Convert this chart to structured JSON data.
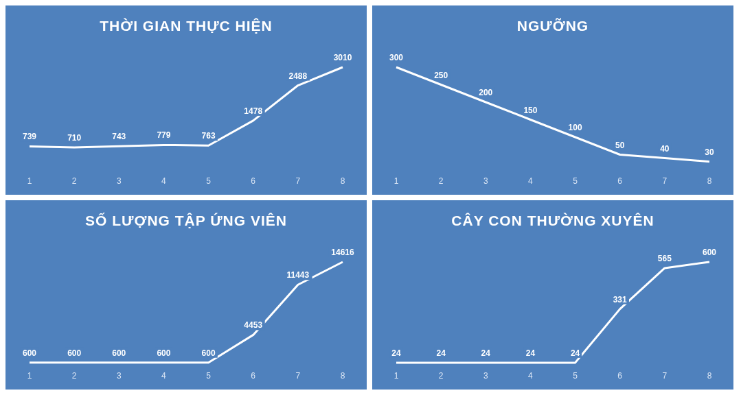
{
  "chart_data": [
    {
      "type": "line",
      "title": "THỜI GIAN THỰC HIỆN",
      "categories": [
        "1",
        "2",
        "3",
        "4",
        "5",
        "6",
        "7",
        "8"
      ],
      "values": [
        739,
        710,
        743,
        779,
        763,
        1478,
        2488,
        3010
      ],
      "color": "#ffffff",
      "data_labels": true,
      "marker": "none"
    },
    {
      "type": "line",
      "title": "NGƯỠNG",
      "categories": [
        "1",
        "2",
        "3",
        "4",
        "5",
        "6",
        "7",
        "8"
      ],
      "values": [
        300,
        250,
        200,
        150,
        100,
        50,
        40,
        30
      ],
      "color": "#ffffff",
      "data_labels": true,
      "marker": "none"
    },
    {
      "type": "line",
      "title": "SỐ LƯỢNG TẬP ỨNG VIÊN",
      "categories": [
        "1",
        "2",
        "3",
        "4",
        "5",
        "6",
        "7",
        "8"
      ],
      "values": [
        600,
        600,
        600,
        600,
        600,
        4453,
        11443,
        14616
      ],
      "color": "#ffffff",
      "data_labels": true,
      "marker": "none"
    },
    {
      "type": "line",
      "title": "CÂY CON THƯỜNG XUYÊN",
      "categories": [
        "1",
        "2",
        "3",
        "4",
        "5",
        "6",
        "7",
        "8"
      ],
      "values": [
        24,
        24,
        24,
        24,
        24,
        331,
        565,
        600
      ],
      "color": "#ffffff",
      "data_labels": true,
      "marker": "none"
    }
  ]
}
